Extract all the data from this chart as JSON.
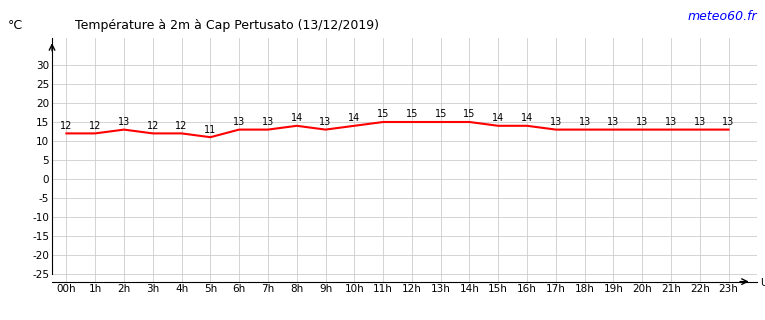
{
  "title": "Température à 2m à Cap Pertusato (13/12/2019)",
  "ylabel": "°C",
  "watermark": "meteo60.fr",
  "background_color": "#ffffff",
  "grid_color": "#cccccc",
  "line_color": "#ff0000",
  "hours": [
    0,
    1,
    2,
    3,
    4,
    5,
    6,
    7,
    8,
    9,
    10,
    11,
    12,
    13,
    14,
    15,
    16,
    17,
    18,
    19,
    20,
    21,
    22,
    23
  ],
  "temperatures": [
    12,
    12,
    13,
    12,
    12,
    11,
    13,
    13,
    14,
    13,
    14,
    15,
    15,
    15,
    15,
    14,
    14,
    13,
    13,
    13,
    13,
    13,
    13,
    13
  ],
  "xlabels": [
    "00h",
    "1h",
    "2h",
    "3h",
    "4h",
    "5h",
    "6h",
    "7h",
    "8h",
    "9h",
    "10h",
    "11h",
    "12h",
    "13h",
    "14h",
    "15h",
    "16h",
    "17h",
    "18h",
    "19h",
    "20h",
    "21h",
    "22h",
    "23h"
  ],
  "yticks": [
    30,
    25,
    20,
    15,
    10,
    5,
    0,
    -5,
    -10,
    -15,
    -20,
    -25
  ],
  "ylim": [
    -27,
    37
  ],
  "xlim": [
    -0.5,
    24.0
  ]
}
